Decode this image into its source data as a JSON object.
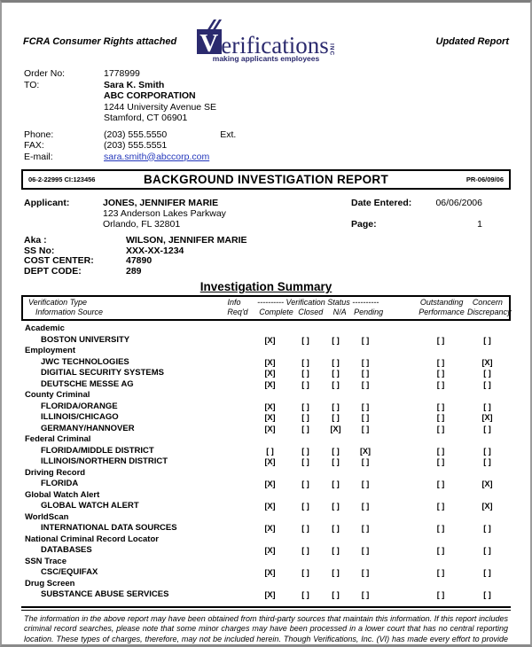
{
  "header": {
    "fcra_note": "FCRA Consumer Rights attached",
    "updated_note": "Updated Report",
    "logo": {
      "v": "V",
      "word": "erifications",
      "inc": "INC",
      "tagline": "making applicants employees",
      "color": "#2b2a6e"
    }
  },
  "order_info": {
    "order_no_label": "Order No:",
    "order_no": "1778999",
    "to_label": "TO:",
    "to_name": "Sara K. Smith",
    "to_company": "ABC CORPORATION",
    "to_address1": "1244 University Avenue SE",
    "to_address2": "Stamford, CT 06901",
    "phone_label": "Phone:",
    "phone": "(203) 555.5550",
    "ext_label": "Ext.",
    "fax_label": "FAX:",
    "fax": "(203) 555.5551",
    "email_label": "E-mail:",
    "email": "sara.smith@abccorp.com"
  },
  "title_bar": {
    "left_code": "06-2-22995  CI:123456",
    "title": "BACKGROUND INVESTIGATION REPORT",
    "right_code": "PR-06/09/06"
  },
  "applicant": {
    "label": "Applicant:",
    "name": "JONES, JENNIFER MARIE",
    "address1": "123 Anderson Lakes Parkway",
    "address2": "Orlando, FL 32801",
    "date_entered_label": "Date Entered:",
    "date_entered": "06/06/2006",
    "page_label": "Page:",
    "page_number": "1",
    "aka_label": "Aka :",
    "aka": "WILSON, JENNIFER MARIE",
    "ssn_label": "SS No:",
    "ssn": "XXX-XX-1234",
    "cost_center_label": "COST CENTER:",
    "cost_center": "47890",
    "dept_code_label": "DEPT CODE:",
    "dept_code": "289"
  },
  "summary": {
    "title": "Investigation Summary",
    "header": {
      "col_type": "Verification Type",
      "col_source": "Information Source",
      "col_info": "Info",
      "col_reqd": "Req'd",
      "status_group": "---------- Verification Status ----------",
      "col_complete": "Complete",
      "col_closed": "Closed",
      "col_na": "N/A",
      "col_pending": "Pending",
      "col_outstanding": "Outstanding",
      "col_performance": "Performance",
      "col_concern": "Concern",
      "col_discrepancy": "Discrepancy"
    },
    "checked": "[X]",
    "unchecked": "[ ]",
    "groups": [
      {
        "name": "Academic",
        "rows": [
          {
            "source": "BOSTON UNIVERSITY",
            "marks": [
              true,
              false,
              false,
              false,
              false,
              false
            ]
          }
        ]
      },
      {
        "name": "Employment",
        "rows": [
          {
            "source": "JWC TECHNOLOGIES",
            "marks": [
              true,
              false,
              false,
              false,
              false,
              true
            ]
          },
          {
            "source": "DIGITIAL SECURITY SYSTEMS",
            "marks": [
              true,
              false,
              false,
              false,
              false,
              false
            ]
          },
          {
            "source": "DEUTSCHE MESSE AG",
            "marks": [
              true,
              false,
              false,
              false,
              false,
              false
            ]
          }
        ]
      },
      {
        "name": "County Criminal",
        "rows": [
          {
            "source": "FLORIDA/ORANGE",
            "marks": [
              true,
              false,
              false,
              false,
              false,
              false
            ]
          },
          {
            "source": "ILLINOIS/CHICAGO",
            "marks": [
              true,
              false,
              false,
              false,
              false,
              true
            ]
          },
          {
            "source": "GERMANY/HANNOVER",
            "marks": [
              true,
              false,
              true,
              false,
              false,
              false
            ]
          }
        ]
      },
      {
        "name": "Federal Criminal",
        "rows": [
          {
            "source": "FLORIDA/MIDDLE DISTRICT",
            "marks": [
              false,
              false,
              false,
              true,
              false,
              false
            ]
          },
          {
            "source": "ILLINOIS/NORTHERN DISTRICT",
            "marks": [
              true,
              false,
              false,
              false,
              false,
              false
            ]
          }
        ]
      },
      {
        "name": "Driving Record",
        "rows": [
          {
            "source": "FLORIDA",
            "marks": [
              true,
              false,
              false,
              false,
              false,
              true
            ]
          }
        ]
      },
      {
        "name": "Global Watch Alert",
        "rows": [
          {
            "source": "GLOBAL WATCH ALERT",
            "marks": [
              true,
              false,
              false,
              false,
              false,
              true
            ]
          }
        ]
      },
      {
        "name": "WorldScan",
        "rows": [
          {
            "source": "INTERNATIONAL DATA SOURCES",
            "marks": [
              true,
              false,
              false,
              false,
              false,
              false
            ]
          }
        ]
      },
      {
        "name": "National Criminal Record Locator",
        "rows": [
          {
            "source": "DATABASES",
            "marks": [
              true,
              false,
              false,
              false,
              false,
              false
            ]
          }
        ]
      },
      {
        "name": "SSN Trace",
        "rows": [
          {
            "source": "CSC/EQUIFAX",
            "marks": [
              true,
              false,
              false,
              false,
              false,
              false
            ]
          }
        ]
      },
      {
        "name": "Drug Screen",
        "rows": [
          {
            "source": "SUBSTANCE ABUSE SERVICES",
            "marks": [
              true,
              false,
              false,
              false,
              false,
              false
            ]
          }
        ]
      }
    ]
  },
  "footer": {
    "disclaimer": "The information in the above report may have been obtained from third-party sources that maintain this information. If this report includes criminal record searches, please note that some minor charges may have been processed in a lower court that has no central reporting location. These types of charges, therefore, may not be included herein. Though Verifications, Inc. (VI) has made every effort to provide accurate information, the accuracy and/or completeness of the information provided cannot be guaranteed. By engaging VI, you release VI, and all of its officers, agents, and employees from all liability for any negligence associated with providing the enclosed information."
  }
}
